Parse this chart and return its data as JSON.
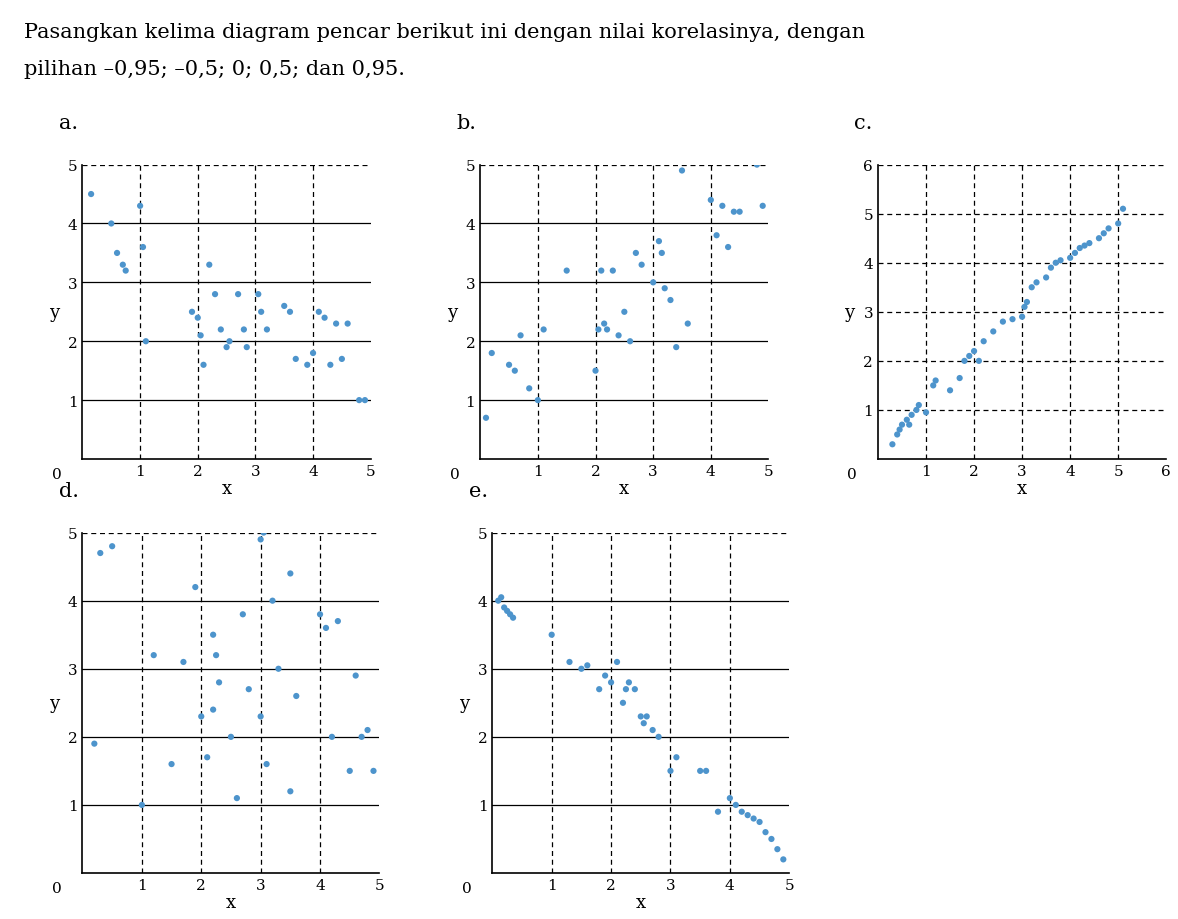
{
  "title_line1": "Pasangkan kelima diagram pencar berikut ini dengan nilai korelasinya, dengan",
  "title_line2": "pilihan –0,95; –0,5; 0; 0,5; dan 0,95.",
  "title_fontsize": 15,
  "label_fontsize": 13,
  "tick_fontsize": 11,
  "dot_color": "#4d94cc",
  "dot_size": 20,
  "plots": [
    {
      "label": "a.",
      "xlim": [
        0,
        5
      ],
      "ylim": [
        0,
        5
      ],
      "xticks": [
        1,
        2,
        3,
        4,
        5
      ],
      "yticks": [
        1,
        2,
        3,
        4,
        5
      ],
      "solid_hlines": [
        1,
        2,
        3,
        4
      ],
      "dashed_vlines": [
        1,
        2,
        3,
        4
      ],
      "dashed_hlines": [
        5
      ],
      "x": [
        0.15,
        0.5,
        0.6,
        0.7,
        0.75,
        1.0,
        1.05,
        1.1,
        1.9,
        2.0,
        2.05,
        2.1,
        2.2,
        2.3,
        2.4,
        2.5,
        2.55,
        2.7,
        2.8,
        2.85,
        3.05,
        3.1,
        3.2,
        3.5,
        3.6,
        3.7,
        3.9,
        4.0,
        4.1,
        4.2,
        4.3,
        4.4,
        4.5,
        4.6,
        4.8,
        4.9
      ],
      "y": [
        4.5,
        4.0,
        3.5,
        3.3,
        3.2,
        4.3,
        3.6,
        2.0,
        2.5,
        2.4,
        2.1,
        1.6,
        3.3,
        2.8,
        2.2,
        1.9,
        2.0,
        2.8,
        2.2,
        1.9,
        2.8,
        2.5,
        2.2,
        2.6,
        2.5,
        1.7,
        1.6,
        1.8,
        2.5,
        2.4,
        1.6,
        2.3,
        1.7,
        2.3,
        1.0,
        1.0
      ]
    },
    {
      "label": "b.",
      "xlim": [
        0,
        5
      ],
      "ylim": [
        0,
        5
      ],
      "xticks": [
        1,
        2,
        3,
        4,
        5
      ],
      "yticks": [
        1,
        2,
        3,
        4,
        5
      ],
      "solid_hlines": [
        1,
        2,
        3,
        4
      ],
      "dashed_vlines": [
        1,
        2,
        3,
        4
      ],
      "dashed_hlines": [
        5
      ],
      "x": [
        0.1,
        0.2,
        0.5,
        0.6,
        0.7,
        0.85,
        1.0,
        1.1,
        1.5,
        2.0,
        2.05,
        2.1,
        2.15,
        2.2,
        2.3,
        2.4,
        2.5,
        2.6,
        2.7,
        2.8,
        3.0,
        3.1,
        3.15,
        3.2,
        3.3,
        3.4,
        3.5,
        3.6,
        4.0,
        4.1,
        4.2,
        4.3,
        4.4,
        4.5,
        4.8,
        4.9
      ],
      "y": [
        0.7,
        1.8,
        1.6,
        1.5,
        2.1,
        1.2,
        1.0,
        2.2,
        3.2,
        1.5,
        2.2,
        3.2,
        2.3,
        2.2,
        3.2,
        2.1,
        2.5,
        2.0,
        3.5,
        3.3,
        3.0,
        3.7,
        3.5,
        2.9,
        2.7,
        1.9,
        4.9,
        2.3,
        4.4,
        3.8,
        4.3,
        3.6,
        4.2,
        4.2,
        5.0,
        4.3
      ]
    },
    {
      "label": "c.",
      "xlim": [
        0,
        6
      ],
      "ylim": [
        0,
        6
      ],
      "xticks": [
        1,
        2,
        3,
        4,
        5,
        6
      ],
      "yticks": [
        1,
        2,
        3,
        4,
        5,
        6
      ],
      "solid_hlines": [],
      "dashed_vlines": [
        1,
        2,
        3,
        4,
        5
      ],
      "dashed_hlines": [
        1,
        2,
        3,
        4,
        5,
        6
      ],
      "x": [
        0.3,
        0.4,
        0.45,
        0.5,
        0.6,
        0.65,
        0.7,
        0.8,
        0.85,
        1.0,
        1.15,
        1.2,
        1.5,
        1.7,
        1.8,
        1.9,
        2.0,
        2.1,
        2.2,
        2.4,
        2.6,
        2.8,
        3.0,
        3.05,
        3.1,
        3.2,
        3.3,
        3.5,
        3.6,
        3.7,
        3.8,
        4.0,
        4.1,
        4.2,
        4.3,
        4.4,
        4.6,
        4.7,
        4.8,
        5.0,
        5.1
      ],
      "y": [
        0.3,
        0.5,
        0.6,
        0.7,
        0.8,
        0.7,
        0.9,
        1.0,
        1.1,
        0.95,
        1.5,
        1.6,
        1.4,
        1.65,
        2.0,
        2.1,
        2.2,
        2.0,
        2.4,
        2.6,
        2.8,
        2.85,
        2.9,
        3.1,
        3.2,
        3.5,
        3.6,
        3.7,
        3.9,
        4.0,
        4.05,
        4.1,
        4.2,
        4.3,
        4.35,
        4.4,
        4.5,
        4.6,
        4.7,
        4.8,
        5.1
      ]
    },
    {
      "label": "d.",
      "xlim": [
        0,
        5
      ],
      "ylim": [
        0,
        5
      ],
      "xticks": [
        1,
        2,
        3,
        4,
        5
      ],
      "yticks": [
        1,
        2,
        3,
        4,
        5
      ],
      "solid_hlines": [
        1,
        2,
        3,
        4
      ],
      "dashed_vlines": [
        1,
        2,
        3,
        4
      ],
      "dashed_hlines": [
        5
      ],
      "x": [
        0.2,
        0.3,
        0.5,
        1.0,
        1.2,
        1.5,
        1.7,
        1.9,
        2.0,
        2.1,
        2.2,
        2.25,
        2.3,
        2.5,
        2.6,
        2.7,
        2.8,
        3.0,
        3.05,
        3.1,
        3.2,
        3.3,
        3.5,
        3.6,
        4.0,
        4.1,
        4.2,
        4.3,
        4.5,
        4.6,
        4.7,
        4.8,
        4.9,
        3.0,
        3.5,
        2.2
      ],
      "y": [
        1.9,
        4.7,
        4.8,
        1.0,
        3.2,
        1.6,
        3.1,
        4.2,
        2.3,
        1.7,
        3.5,
        3.2,
        2.8,
        2.0,
        1.1,
        3.8,
        2.7,
        2.3,
        5.0,
        1.6,
        4.0,
        3.0,
        1.2,
        2.6,
        3.8,
        3.6,
        2.0,
        3.7,
        1.5,
        2.9,
        2.0,
        2.1,
        1.5,
        4.9,
        4.4,
        2.4
      ]
    },
    {
      "label": "e.",
      "xlim": [
        0,
        5
      ],
      "ylim": [
        0,
        5
      ],
      "xticks": [
        1,
        2,
        3,
        4,
        5
      ],
      "yticks": [
        1,
        2,
        3,
        4,
        5
      ],
      "solid_hlines": [
        1,
        2,
        3,
        4
      ],
      "dashed_vlines": [
        1,
        2,
        3,
        4
      ],
      "dashed_hlines": [
        5
      ],
      "x": [
        0.1,
        0.15,
        0.2,
        0.25,
        0.3,
        0.35,
        1.0,
        1.3,
        1.5,
        1.6,
        1.8,
        1.9,
        2.0,
        2.1,
        2.2,
        2.25,
        2.3,
        2.4,
        2.5,
        2.55,
        2.6,
        2.7,
        2.8,
        3.0,
        3.1,
        3.5,
        3.6,
        3.8,
        4.0,
        4.1,
        4.2,
        4.3,
        4.4,
        4.5,
        4.6,
        4.7,
        4.8,
        4.9
      ],
      "y": [
        4.0,
        4.05,
        3.9,
        3.85,
        3.8,
        3.75,
        3.5,
        3.1,
        3.0,
        3.05,
        2.7,
        2.9,
        2.8,
        3.1,
        2.5,
        2.7,
        2.8,
        2.7,
        2.3,
        2.2,
        2.3,
        2.1,
        2.0,
        1.5,
        1.7,
        1.5,
        1.5,
        0.9,
        1.1,
        1.0,
        0.9,
        0.85,
        0.8,
        0.75,
        0.6,
        0.5,
        0.35,
        0.2
      ]
    }
  ],
  "background_color": "#ffffff"
}
